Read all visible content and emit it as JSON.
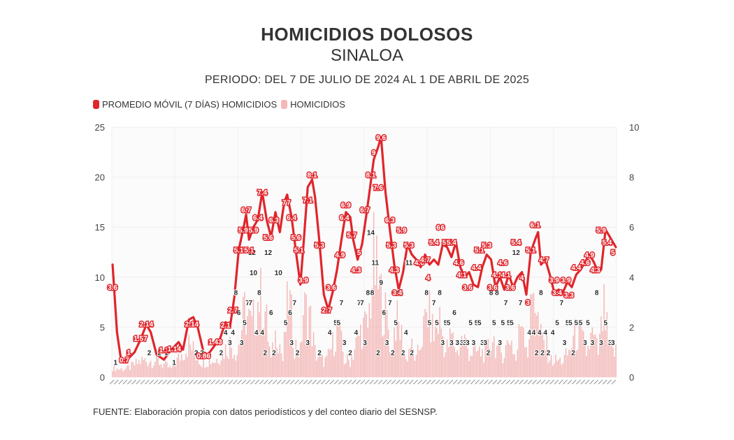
{
  "title": "HOMICIDIOS DOLOSOS",
  "subtitle": "SINALOA",
  "period": "PERIODO: DEL 7 DE JULIO DE 2024 AL 1 DE ABRIL DE 2025",
  "source": "FUENTE: Elaboración propia con datos periodísticos y del conteo diario del SESNSP.",
  "colors": {
    "line": "#e0252b",
    "bar": "#f4b8b8",
    "grid": "#eeeeee"
  },
  "chart_data": {
    "type": "bar+line",
    "legend": [
      {
        "name": "PROMEDIO MÓVIL (7 DÍAS) HOMICIDIOS",
        "color": "#e0252b"
      },
      {
        "name": "HOMICIDIOS",
        "color": "#f4b8b8"
      }
    ],
    "legend_position": "top-left",
    "y_left": {
      "min": 0,
      "max": 25,
      "ticks": [
        "0",
        "5",
        "10",
        "15",
        "20",
        "25"
      ]
    },
    "y_right": {
      "min": 0,
      "max": 10,
      "ticks": [
        "0",
        "2",
        "4",
        "6",
        "8",
        "10"
      ]
    },
    "grid": true,
    "x_tick_labels_legible": false,
    "line_anchors": [
      [
        0,
        4.5
      ],
      [
        3,
        1.8
      ],
      [
        6,
        0.6
      ],
      [
        10,
        0.7
      ],
      [
        15,
        1.0
      ],
      [
        19,
        1.5
      ],
      [
        23,
        2.1
      ],
      [
        26,
        1.8
      ],
      [
        30,
        0.9
      ],
      [
        35,
        0.7
      ],
      [
        40,
        1.1
      ],
      [
        45,
        1.4
      ],
      [
        48,
        1.1
      ],
      [
        52,
        2.3
      ],
      [
        55,
        2.4
      ],
      [
        58,
        2.0
      ],
      [
        62,
        1.0
      ],
      [
        65,
        0.9
      ],
      [
        70,
        1.3
      ],
      [
        73,
        1.5
      ],
      [
        77,
        2.2
      ],
      [
        80,
        2.0
      ],
      [
        83,
        3.2
      ],
      [
        86,
        5.1
      ],
      [
        89,
        5.9
      ],
      [
        91,
        6.5
      ],
      [
        93,
        5.5
      ],
      [
        96,
        6.0
      ],
      [
        99,
        6.3
      ],
      [
        102,
        7.4
      ],
      [
        105,
        6.3
      ],
      [
        108,
        5.6
      ],
      [
        111,
        6.6
      ],
      [
        114,
        5.8
      ],
      [
        117,
        7.0
      ],
      [
        119,
        7.3
      ],
      [
        122,
        6.4
      ],
      [
        125,
        5.0
      ],
      [
        128,
        3.7
      ],
      [
        130,
        5.2
      ],
      [
        133,
        7.6
      ],
      [
        136,
        7.9
      ],
      [
        138,
        7.2
      ],
      [
        141,
        5.4
      ],
      [
        144,
        3.3
      ],
      [
        147,
        2.7
      ],
      [
        150,
        3.4
      ],
      [
        153,
        4.3
      ],
      [
        156,
        5.5
      ],
      [
        159,
        6.6
      ],
      [
        162,
        6.4
      ],
      [
        164,
        5.5
      ],
      [
        167,
        4.7
      ],
      [
        170,
        5.3
      ],
      [
        173,
        6.5
      ],
      [
        176,
        7.8
      ],
      [
        178,
        8.7
      ],
      [
        181,
        9.2
      ],
      [
        183,
        9.6
      ],
      [
        186,
        7.4
      ],
      [
        189,
        5.9
      ],
      [
        192,
        4.5
      ],
      [
        195,
        3.5
      ],
      [
        198,
        4.2
      ],
      [
        201,
        5.3
      ],
      [
        204,
        4.9
      ],
      [
        207,
        4.7
      ],
      [
        210,
        4.4
      ],
      [
        213,
        4.9
      ],
      [
        216,
        4.5
      ],
      [
        219,
        4.7
      ],
      [
        222,
        4.5
      ],
      [
        225,
        5.3
      ],
      [
        228,
        5.2
      ],
      [
        231,
        4.8
      ],
      [
        234,
        5.4
      ],
      [
        237,
        4.4
      ],
      [
        240,
        4.0
      ],
      [
        243,
        4.2
      ],
      [
        246,
        3.7
      ],
      [
        249,
        3.6
      ],
      [
        252,
        4.4
      ],
      [
        255,
        4.9
      ],
      [
        258,
        4.7
      ],
      [
        261,
        3.6
      ],
      [
        264,
        4.0
      ],
      [
        267,
        3.5
      ],
      [
        270,
        4.1
      ],
      [
        273,
        3.6
      ],
      [
        276,
        4.0
      ],
      [
        279,
        4.2
      ],
      [
        282,
        3.3
      ],
      [
        285,
        5.0
      ],
      [
        288,
        5.5
      ],
      [
        290,
        5.8
      ],
      [
        292,
        4.5
      ],
      [
        295,
        4.7
      ],
      [
        298,
        4.1
      ],
      [
        301,
        3.4
      ],
      [
        304,
        3.5
      ],
      [
        307,
        3.4
      ],
      [
        310,
        3.8
      ],
      [
        313,
        3.6
      ],
      [
        316,
        4.1
      ],
      [
        319,
        4.3
      ],
      [
        322,
        4.6
      ],
      [
        325,
        4.9
      ],
      [
        328,
        4.6
      ],
      [
        331,
        4.2
      ],
      [
        333,
        4.3
      ],
      [
        336,
        5.9
      ],
      [
        338,
        5.7
      ],
      [
        341,
        5.4
      ],
      [
        343,
        5.2
      ]
    ],
    "bar_anchors": [
      [
        0,
        1
      ],
      [
        10,
        1
      ],
      [
        20,
        2
      ],
      [
        30,
        2
      ],
      [
        40,
        1
      ],
      [
        52,
        4
      ],
      [
        60,
        2
      ],
      [
        70,
        2
      ],
      [
        80,
        4
      ],
      [
        85,
        3
      ],
      [
        90,
        8
      ],
      [
        95,
        6
      ],
      [
        100,
        10
      ],
      [
        104,
        8
      ],
      [
        108,
        2
      ],
      [
        112,
        6
      ],
      [
        116,
        2
      ],
      [
        120,
        10
      ],
      [
        124,
        4
      ],
      [
        128,
        3
      ],
      [
        130,
        8
      ],
      [
        134,
        8
      ],
      [
        138,
        3
      ],
      [
        142,
        2
      ],
      [
        146,
        2
      ],
      [
        150,
        4
      ],
      [
        154,
        6
      ],
      [
        158,
        2
      ],
      [
        162,
        2
      ],
      [
        166,
        4
      ],
      [
        170,
        6
      ],
      [
        174,
        6
      ],
      [
        178,
        14
      ],
      [
        181,
        11
      ],
      [
        184,
        9
      ],
      [
        188,
        6
      ],
      [
        190,
        3
      ],
      [
        193,
        7
      ],
      [
        197,
        5
      ],
      [
        200,
        2
      ],
      [
        203,
        4
      ],
      [
        207,
        2
      ],
      [
        211,
        5
      ],
      [
        215,
        8
      ],
      [
        219,
        5
      ],
      [
        223,
        7
      ],
      [
        227,
        3
      ],
      [
        231,
        5
      ],
      [
        235,
        3
      ],
      [
        239,
        5
      ],
      [
        243,
        3
      ],
      [
        247,
        3
      ],
      [
        251,
        3
      ],
      [
        255,
        3
      ],
      [
        259,
        5
      ],
      [
        263,
        3
      ],
      [
        267,
        3
      ],
      [
        271,
        5
      ],
      [
        275,
        2
      ],
      [
        279,
        8
      ],
      [
        283,
        3
      ],
      [
        287,
        12
      ],
      [
        291,
        5
      ],
      [
        295,
        4
      ],
      [
        299,
        2
      ],
      [
        303,
        2
      ],
      [
        307,
        2
      ],
      [
        311,
        3
      ],
      [
        315,
        5
      ],
      [
        319,
        5
      ],
      [
        323,
        3
      ],
      [
        327,
        5
      ],
      [
        331,
        3
      ],
      [
        335,
        8
      ],
      [
        339,
        3
      ],
      [
        343,
        3
      ]
    ],
    "line_labels": [
      {
        "t": 0,
        "v": "3.6"
      },
      {
        "t": 8,
        "v": "0.7"
      },
      {
        "t": 11,
        "v": "1"
      },
      {
        "t": 19,
        "v": "1.57"
      },
      {
        "t": 23,
        "v": "2.14"
      },
      {
        "t": 35,
        "v": "1.1"
      },
      {
        "t": 42,
        "v": "1.14"
      },
      {
        "t": 54,
        "v": "2.14"
      },
      {
        "t": 62,
        "v": "0.86"
      },
      {
        "t": 70,
        "v": "1.43"
      },
      {
        "t": 77,
        "v": "2.1"
      },
      {
        "t": 82,
        "v": "2.7"
      },
      {
        "t": 86,
        "v": "5.1"
      },
      {
        "t": 89,
        "v": "5.9"
      },
      {
        "t": 91,
        "v": "6.7"
      },
      {
        "t": 93,
        "v": "5.1"
      },
      {
        "t": 96,
        "v": "5.9"
      },
      {
        "t": 99,
        "v": "6.4"
      },
      {
        "t": 102,
        "v": "7.4"
      },
      {
        "t": 106,
        "v": "5.6"
      },
      {
        "t": 110,
        "v": "6.3"
      },
      {
        "t": 117,
        "v": "7"
      },
      {
        "t": 120,
        "v": "7"
      },
      {
        "t": 122,
        "v": "6.4"
      },
      {
        "t": 125,
        "v": "5.6"
      },
      {
        "t": 127,
        "v": "5.1"
      },
      {
        "t": 130,
        "v": "3.9"
      },
      {
        "t": 133,
        "v": "7.1"
      },
      {
        "t": 136,
        "v": "8.1"
      },
      {
        "t": 141,
        "v": "5.3"
      },
      {
        "t": 146,
        "v": "2.7"
      },
      {
        "t": 149,
        "v": "3.6"
      },
      {
        "t": 155,
        "v": "4.9"
      },
      {
        "t": 158,
        "v": "6.4"
      },
      {
        "t": 159,
        "v": "6.9"
      },
      {
        "t": 163,
        "v": "5.7"
      },
      {
        "t": 166,
        "v": "4.3"
      },
      {
        "t": 168,
        "v": "5"
      },
      {
        "t": 172,
        "v": "6.7"
      },
      {
        "t": 176,
        "v": "8.1"
      },
      {
        "t": 178,
        "v": "9"
      },
      {
        "t": 181,
        "v": "7.6"
      },
      {
        "t": 183,
        "v": "9.6"
      },
      {
        "t": 189,
        "v": "6.3"
      },
      {
        "t": 190,
        "v": "5.3"
      },
      {
        "t": 192,
        "v": "4.3"
      },
      {
        "t": 194,
        "v": "3.4"
      },
      {
        "t": 197,
        "v": "5.9"
      },
      {
        "t": 202,
        "v": "5.3"
      },
      {
        "t": 209,
        "v": "4.6"
      },
      {
        "t": 213,
        "v": "4.7"
      },
      {
        "t": 215,
        "v": "4"
      },
      {
        "t": 219,
        "v": "5.4"
      },
      {
        "t": 222,
        "v": "6"
      },
      {
        "t": 225,
        "v": "6"
      },
      {
        "t": 228,
        "v": "5.4"
      },
      {
        "t": 231,
        "v": "5.4"
      },
      {
        "t": 236,
        "v": "4.6"
      },
      {
        "t": 238,
        "v": "4.1"
      },
      {
        "t": 242,
        "v": "3.6"
      },
      {
        "t": 248,
        "v": "4.4"
      },
      {
        "t": 250,
        "v": "5.1"
      },
      {
        "t": 255,
        "v": "5.3"
      },
      {
        "t": 259,
        "v": "3.6"
      },
      {
        "t": 262,
        "v": "4.1"
      },
      {
        "t": 266,
        "v": "4.6"
      },
      {
        "t": 268,
        "v": "4.1"
      },
      {
        "t": 271,
        "v": "3.6"
      },
      {
        "t": 275,
        "v": "5.4"
      },
      {
        "t": 279,
        "v": "4"
      },
      {
        "t": 283,
        "v": "3"
      },
      {
        "t": 285,
        "v": "5.1"
      },
      {
        "t": 288,
        "v": "6.1"
      },
      {
        "t": 294,
        "v": "4.7"
      },
      {
        "t": 301,
        "v": "3.9"
      },
      {
        "t": 303,
        "v": "3.4"
      },
      {
        "t": 309,
        "v": "3.9"
      },
      {
        "t": 311,
        "v": "3.3"
      },
      {
        "t": 316,
        "v": "4.4"
      },
      {
        "t": 322,
        "v": "4.6"
      },
      {
        "t": 325,
        "v": "4.9"
      },
      {
        "t": 329,
        "v": "4.3"
      },
      {
        "t": 333,
        "v": "5.9"
      },
      {
        "t": 337,
        "v": "5.4"
      },
      {
        "t": 341,
        "v": "5"
      }
    ],
    "bar_labels": [
      {
        "t": 2,
        "v": "1"
      },
      {
        "t": 25,
        "v": "2"
      },
      {
        "t": 32,
        "v": "2"
      },
      {
        "t": 37,
        "v": "2"
      },
      {
        "t": 42,
        "v": "1"
      },
      {
        "t": 57,
        "v": "2"
      },
      {
        "t": 61,
        "v": "2"
      },
      {
        "t": 74,
        "v": "2"
      },
      {
        "t": 77,
        "v": "4"
      },
      {
        "t": 80,
        "v": "3"
      },
      {
        "t": 82,
        "v": "4"
      },
      {
        "t": 84,
        "v": "8"
      },
      {
        "t": 86,
        "v": "6"
      },
      {
        "t": 88,
        "v": "3"
      },
      {
        "t": 90,
        "v": "5"
      },
      {
        "t": 92,
        "v": "7"
      },
      {
        "t": 94,
        "v": "7"
      },
      {
        "t": 95,
        "v": "12"
      },
      {
        "t": 96,
        "v": "10"
      },
      {
        "t": 98,
        "v": "4"
      },
      {
        "t": 100,
        "v": "8"
      },
      {
        "t": 102,
        "v": "4"
      },
      {
        "t": 104,
        "v": "2"
      },
      {
        "t": 106,
        "v": "12"
      },
      {
        "t": 108,
        "v": "6"
      },
      {
        "t": 110,
        "v": "2"
      },
      {
        "t": 113,
        "v": "10"
      },
      {
        "t": 118,
        "v": "5"
      },
      {
        "t": 121,
        "v": "6"
      },
      {
        "t": 122,
        "v": "3"
      },
      {
        "t": 124,
        "v": "7"
      },
      {
        "t": 126,
        "v": "2"
      },
      {
        "t": 133,
        "v": "3"
      },
      {
        "t": 141,
        "v": "2"
      },
      {
        "t": 148,
        "v": "4"
      },
      {
        "t": 152,
        "v": "5"
      },
      {
        "t": 154,
        "v": "5"
      },
      {
        "t": 156,
        "v": "7"
      },
      {
        "t": 158,
        "v": "3"
      },
      {
        "t": 162,
        "v": "2"
      },
      {
        "t": 166,
        "v": "4"
      },
      {
        "t": 168,
        "v": "7"
      },
      {
        "t": 170,
        "v": "7"
      },
      {
        "t": 172,
        "v": "3"
      },
      {
        "t": 174,
        "v": "8"
      },
      {
        "t": 176,
        "v": "14"
      },
      {
        "t": 177,
        "v": "8"
      },
      {
        "t": 179,
        "v": "11"
      },
      {
        "t": 181,
        "v": "2"
      },
      {
        "t": 183,
        "v": "9"
      },
      {
        "t": 185,
        "v": "6"
      },
      {
        "t": 187,
        "v": "3"
      },
      {
        "t": 189,
        "v": "7"
      },
      {
        "t": 191,
        "v": "2"
      },
      {
        "t": 193,
        "v": "5"
      },
      {
        "t": 195,
        "v": "8"
      },
      {
        "t": 198,
        "v": "2"
      },
      {
        "t": 200,
        "v": "4"
      },
      {
        "t": 202,
        "v": "11"
      },
      {
        "t": 204,
        "v": "2"
      },
      {
        "t": 214,
        "v": "8"
      },
      {
        "t": 216,
        "v": "5"
      },
      {
        "t": 219,
        "v": "7"
      },
      {
        "t": 221,
        "v": "5"
      },
      {
        "t": 223,
        "v": "8"
      },
      {
        "t": 225,
        "v": "3"
      },
      {
        "t": 227,
        "v": "5"
      },
      {
        "t": 229,
        "v": "5"
      },
      {
        "t": 231,
        "v": "3"
      },
      {
        "t": 233,
        "v": "6"
      },
      {
        "t": 235,
        "v": "3"
      },
      {
        "t": 238,
        "v": "3"
      },
      {
        "t": 240,
        "v": "3"
      },
      {
        "t": 242,
        "v": "3"
      },
      {
        "t": 244,
        "v": "5"
      },
      {
        "t": 246,
        "v": "3"
      },
      {
        "t": 248,
        "v": "5"
      },
      {
        "t": 250,
        "v": "5"
      },
      {
        "t": 252,
        "v": "3"
      },
      {
        "t": 254,
        "v": "3"
      },
      {
        "t": 256,
        "v": "2"
      },
      {
        "t": 258,
        "v": "8"
      },
      {
        "t": 260,
        "v": "5"
      },
      {
        "t": 262,
        "v": "8"
      },
      {
        "t": 264,
        "v": "3"
      },
      {
        "t": 266,
        "v": "5"
      },
      {
        "t": 268,
        "v": "7"
      },
      {
        "t": 270,
        "v": "5"
      },
      {
        "t": 272,
        "v": "5"
      },
      {
        "t": 275,
        "v": "12"
      },
      {
        "t": 278,
        "v": "7"
      },
      {
        "t": 284,
        "v": "4"
      },
      {
        "t": 287,
        "v": "4"
      },
      {
        "t": 289,
        "v": "2"
      },
      {
        "t": 291,
        "v": "4"
      },
      {
        "t": 292,
        "v": "8"
      },
      {
        "t": 293,
        "v": "2"
      },
      {
        "t": 295,
        "v": "4"
      },
      {
        "t": 297,
        "v": "2"
      },
      {
        "t": 300,
        "v": "4"
      },
      {
        "t": 303,
        "v": "5"
      },
      {
        "t": 306,
        "v": "7"
      },
      {
        "t": 308,
        "v": "3"
      },
      {
        "t": 310,
        "v": "5"
      },
      {
        "t": 312,
        "v": "5"
      },
      {
        "t": 314,
        "v": "2"
      },
      {
        "t": 316,
        "v": "5"
      },
      {
        "t": 319,
        "v": "5"
      },
      {
        "t": 322,
        "v": "3"
      },
      {
        "t": 324,
        "v": "5"
      },
      {
        "t": 327,
        "v": "3"
      },
      {
        "t": 330,
        "v": "8"
      },
      {
        "t": 333,
        "v": "3"
      },
      {
        "t": 336,
        "v": "5"
      },
      {
        "t": 339,
        "v": "3"
      },
      {
        "t": 341,
        "v": "3"
      }
    ]
  }
}
